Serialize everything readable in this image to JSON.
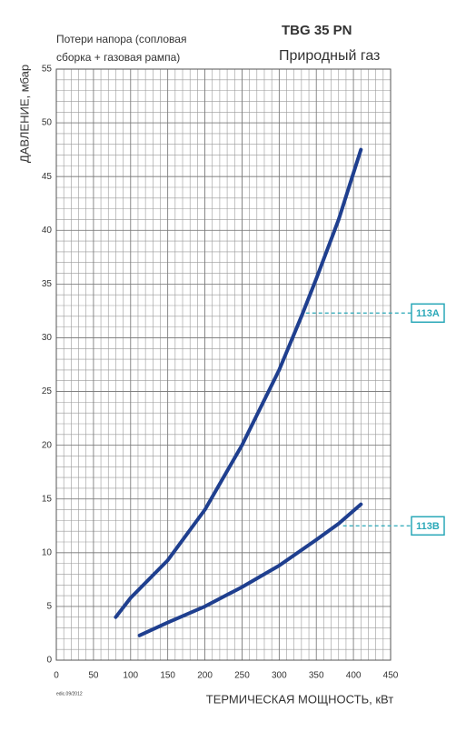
{
  "chart_data": {
    "type": "line",
    "title": "TBG 35 PN",
    "subtitle": "Природный газ",
    "note_lines": [
      "Потери напора (сопловая",
      "сборка + газовая рампа)"
    ],
    "ylabel": "ДАВЛЕНИЕ, мбар",
    "xlabel": "ТЕРМИЧЕСКАЯ МОЩНОСТЬ, кВт",
    "footer": "edic.09/2012",
    "xlim": [
      0,
      450
    ],
    "xticks": [
      0,
      50,
      100,
      150,
      200,
      250,
      300,
      350,
      400,
      450
    ],
    "ylim": [
      0,
      55
    ],
    "yticks": [
      0,
      5,
      10,
      15,
      20,
      25,
      30,
      35,
      40,
      45,
      50,
      55
    ],
    "grid": true,
    "minor_grid_step": [
      10,
      1
    ],
    "series": [
      {
        "name": "113A",
        "color": "#1f3f8f",
        "x": [
          80,
          100,
          150,
          200,
          250,
          300,
          330,
          350,
          380,
          410
        ],
        "values": [
          4,
          5.8,
          9.3,
          14,
          20,
          27,
          32,
          35.5,
          41,
          47.5
        ]
      },
      {
        "name": "113B",
        "color": "#1f3f8f",
        "x": [
          112,
          150,
          200,
          250,
          300,
          350,
          380,
          410
        ],
        "values": [
          2.3,
          3.5,
          5,
          6.8,
          8.8,
          11.2,
          12.7,
          14.5
        ]
      }
    ],
    "annotation_color": "#2aa8b8",
    "annotations": [
      {
        "x": 336,
        "y": 32.3
      },
      {
        "x": 386,
        "y": 12.5
      }
    ]
  }
}
